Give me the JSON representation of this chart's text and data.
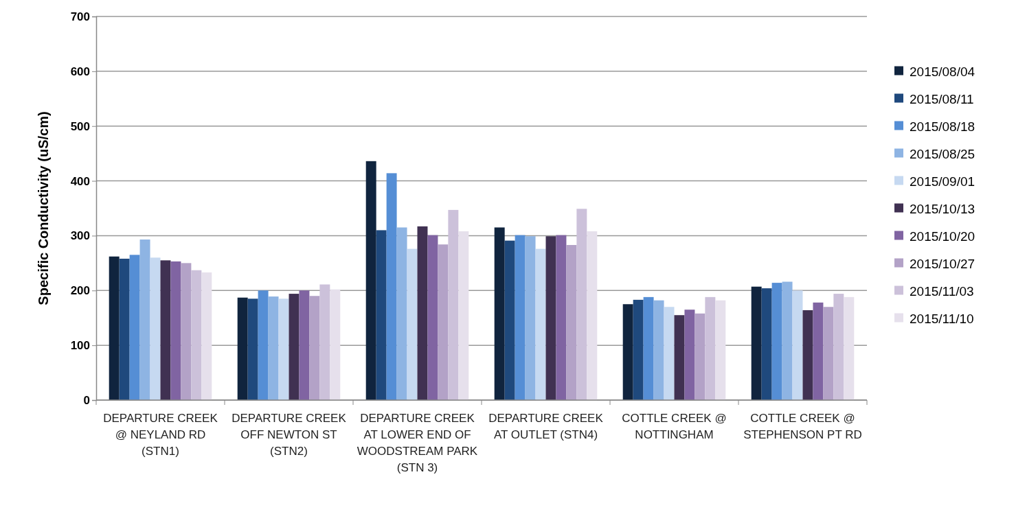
{
  "chart_data": {
    "type": "bar",
    "ylabel": "Specific Conductivity (uS/cm)",
    "categories": [
      "DEPARTURE CREEK @ NEYLAND RD (STN1)",
      "DEPARTURE CREEK OFF NEWTON ST (STN2)",
      "DEPARTURE CREEK AT LOWER END OF WOODSTREAM PARK (STN 3)",
      "DEPARTURE CREEK AT OUTLET (STN4)",
      "COTTLE CREEK @ NOTTINGHAM",
      "COTTLE CREEK @ STEPHENSON PT RD"
    ],
    "series": [
      {
        "name": "2015/08/04",
        "color": "#10243e",
        "values": [
          262,
          187,
          436,
          315,
          175,
          207
        ]
      },
      {
        "name": "2015/08/11",
        "color": "#1f497d",
        "values": [
          258,
          185,
          310,
          291,
          183,
          204
        ]
      },
      {
        "name": "2015/08/18",
        "color": "#558ed5",
        "values": [
          265,
          200,
          414,
          301,
          188,
          214
        ]
      },
      {
        "name": "2015/08/25",
        "color": "#8eb4e3",
        "values": [
          293,
          189,
          315,
          299,
          182,
          216
        ]
      },
      {
        "name": "2015/09/01",
        "color": "#c6d9f1",
        "values": [
          260,
          185,
          276,
          276,
          170,
          200
        ]
      },
      {
        "name": "2015/10/13",
        "color": "#403152",
        "values": [
          255,
          194,
          317,
          299,
          155,
          164
        ]
      },
      {
        "name": "2015/10/20",
        "color": "#8064a2",
        "values": [
          253,
          200,
          301,
          301,
          165,
          178
        ]
      },
      {
        "name": "2015/10/27",
        "color": "#b3a2c7",
        "values": [
          250,
          190,
          284,
          283,
          158,
          170
        ]
      },
      {
        "name": "2015/11/03",
        "color": "#ccc1da",
        "values": [
          237,
          211,
          347,
          349,
          188,
          194
        ]
      },
      {
        "name": "2015/11/10",
        "color": "#e6e0ec",
        "values": [
          233,
          202,
          308,
          308,
          182,
          188
        ]
      }
    ],
    "ylim": [
      0,
      700
    ],
    "yticks": [
      0,
      100,
      200,
      300,
      400,
      500,
      600,
      700
    ],
    "grid": "y",
    "legend": "right"
  }
}
